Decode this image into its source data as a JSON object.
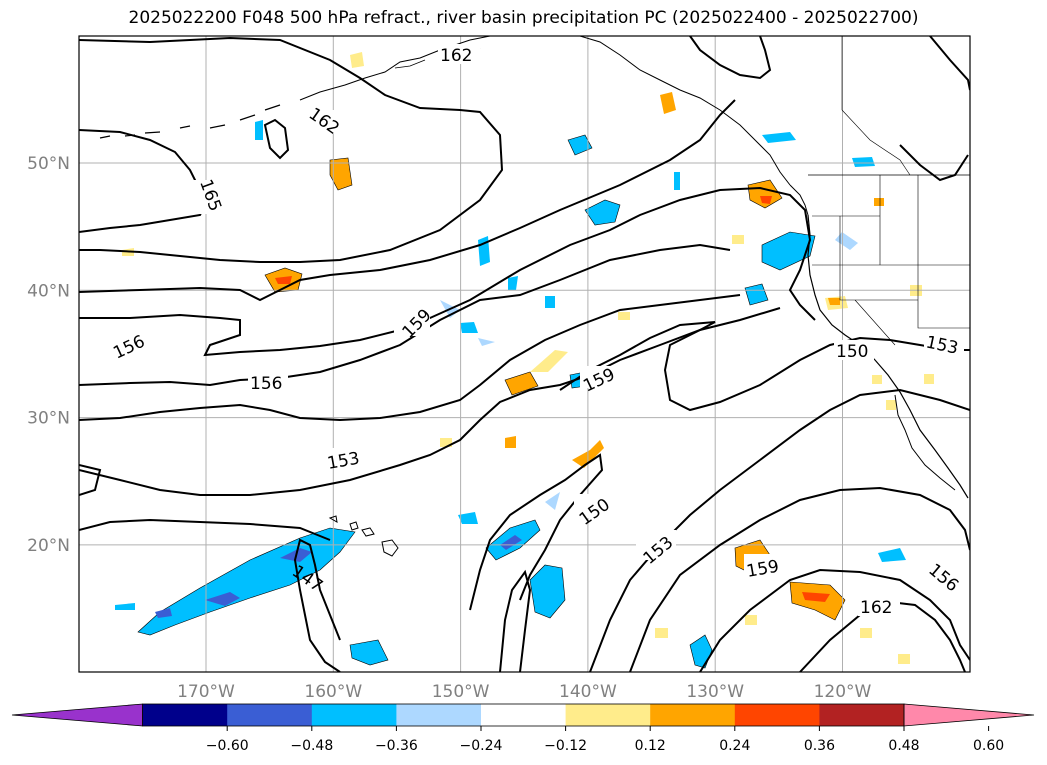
{
  "title": "2025022200 F048 500 hPa refract., river basin precipitation PC (2025022400 - 2025022700)",
  "map": {
    "lat_labels": [
      {
        "text": "50°N",
        "lat": 50
      },
      {
        "text": "40°N",
        "lat": 40
      },
      {
        "text": "30°N",
        "lat": 30
      },
      {
        "text": "20°N",
        "lat": 20
      }
    ],
    "lon_labels": [
      {
        "text": "170°W",
        "lon": -170
      },
      {
        "text": "160°W",
        "lon": -160
      },
      {
        "text": "150°W",
        "lon": -150
      },
      {
        "text": "140°W",
        "lon": -140
      },
      {
        "text": "130°W",
        "lon": -130
      },
      {
        "text": "120°W",
        "lon": -120
      }
    ],
    "contour_labels": [
      "162",
      "162",
      "165",
      "156",
      "156",
      "159",
      "159",
      "153",
      "150",
      "150",
      "153",
      "153",
      "159",
      "156",
      "162",
      "147"
    ],
    "grid": true,
    "colors": {
      "contour": "#000000",
      "coast": "#000000",
      "grid": "#b0b0b0",
      "axis_label": "#808080"
    }
  },
  "colorbar": {
    "ticks": [
      "−0.60",
      "−0.48",
      "−0.36",
      "−0.24",
      "−0.12",
      "0.12",
      "0.24",
      "0.36",
      "0.48",
      "0.60"
    ],
    "colors": [
      "#9932cc",
      "#00008b",
      "#3a5ed4",
      "#00bfff",
      "#add8ff",
      "#ffffff",
      "#ffec8b",
      "#ffa500",
      "#ff4500",
      "#b22222",
      "#ff88aa"
    ]
  }
}
